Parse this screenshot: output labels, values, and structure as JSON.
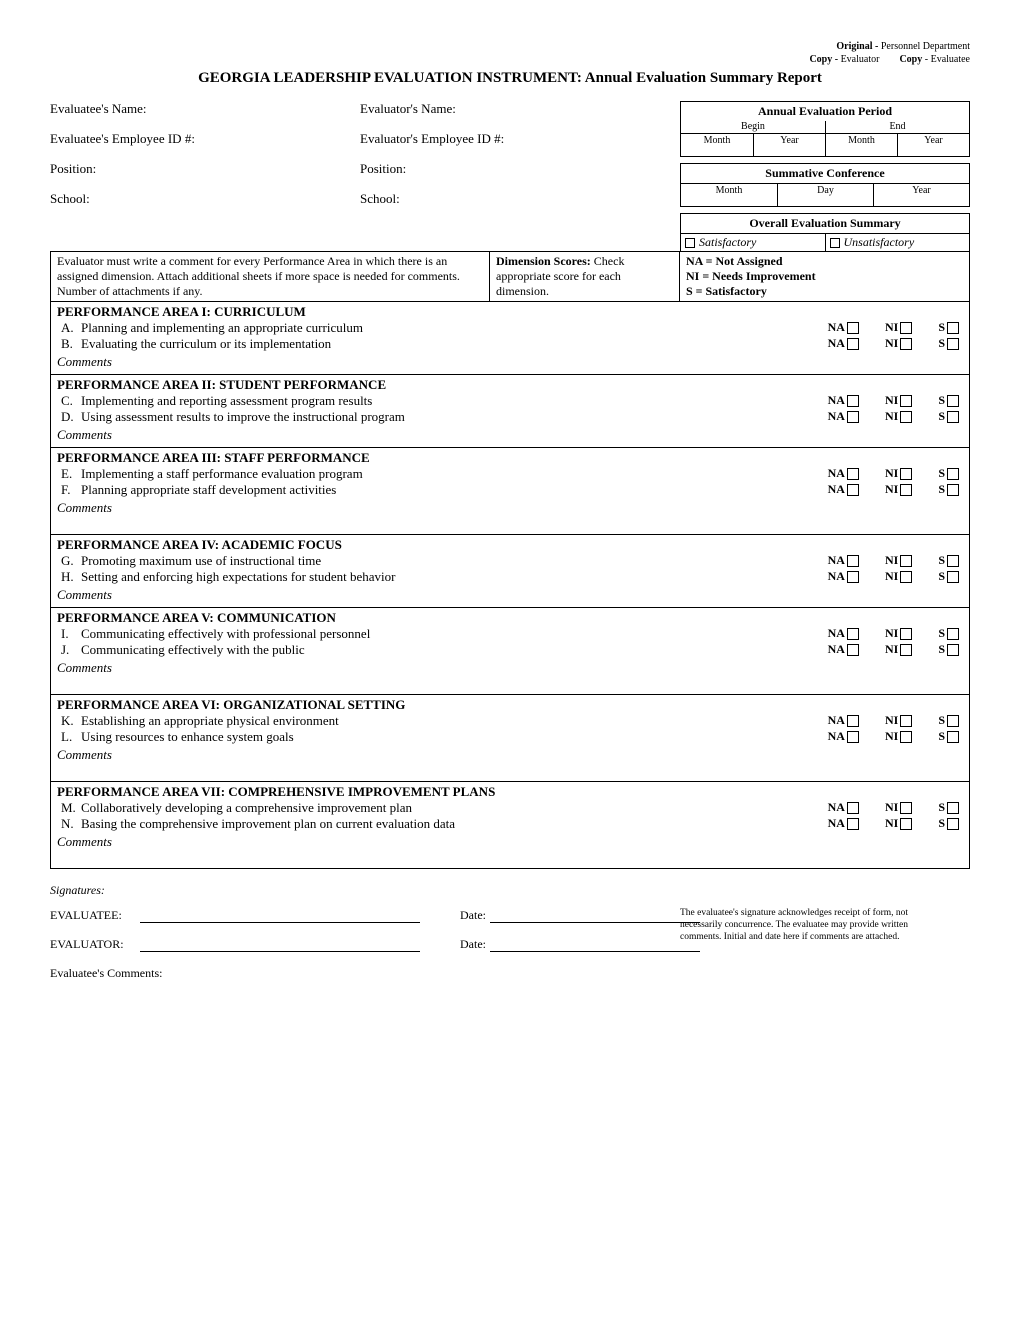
{
  "header": {
    "original": "Original -",
    "original_dest": " Personnel Department",
    "copy1": "Copy -",
    "copy1_dest": " Evaluator",
    "copy2": "Copy ",
    "copy2_dest": " - Evaluatee"
  },
  "title": "GEORGIA LEADERSHIP EVALUATION INSTRUMENT: Annual Evaluation Summary Report",
  "info": {
    "evaluatee_name": "Evaluatee's Name:",
    "evaluator_name": "Evaluator's Name:",
    "evaluatee_id": "Evaluatee's Employee ID #:",
    "evaluator_id": "Evaluator's Employee ID #:",
    "position": "Position:",
    "school": "School:"
  },
  "period": {
    "title": "Annual Evaluation Period",
    "begin": "Begin",
    "end": "End",
    "month": "Month",
    "year": "Year"
  },
  "summative": {
    "title": "Summative Conference",
    "month": "Month",
    "day": "Day",
    "year": "Year"
  },
  "overall": {
    "title": "Overall Evaluation Summary",
    "sat": "Satisfactory",
    "unsat": "Unsatisfactory"
  },
  "instructions": {
    "left": "Evaluator must write a comment for every Performance Area in which there is an assigned dimension. Attach additional sheets if more space is needed for comments. Number of attachments if any.",
    "mid_bold": "Dimension Scores:",
    "mid_rest": "Check appropriate score for each dimension.",
    "r1": "NA = Not Assigned",
    "r2": "NI  = Needs Improvement",
    "r3": "S   = Satisfactory"
  },
  "score_labels": {
    "na": "NA",
    "ni": "NI",
    "s": "S"
  },
  "areas": [
    {
      "title": "PERFORMANCE AREA I: CURRICULUM",
      "items": [
        {
          "letter": "A.",
          "text": "Planning and implementing an appropriate curriculum"
        },
        {
          "letter": "B.",
          "text": "Evaluating the curriculum or its implementation"
        }
      ],
      "comments": "Comments"
    },
    {
      "title": "PERFORMANCE AREA II: STUDENT PERFORMANCE",
      "items": [
        {
          "letter": "C.",
          "text": "Implementing and reporting assessment program results"
        },
        {
          "letter": "D.",
          "text": "Using assessment results to improve the instructional program"
        }
      ],
      "comments": "Comments"
    },
    {
      "title": "PERFORMANCE AREA III: STAFF PERFORMANCE",
      "items": [
        {
          "letter": "E.",
          "text": "Implementing a staff performance evaluation program"
        },
        {
          "letter": "F.",
          "text": "Planning appropriate staff development activities"
        }
      ],
      "comments": "Comments",
      "extra_space": true
    },
    {
      "title": "PERFORMANCE AREA IV: ACADEMIC FOCUS",
      "items": [
        {
          "letter": "G.",
          "text": "Promoting maximum use of instructional time"
        },
        {
          "letter": "H.",
          "text": "Setting and enforcing high expectations for student behavior"
        }
      ],
      "comments": "Comments"
    },
    {
      "title": "PERFORMANCE AREA V: COMMUNICATION",
      "items": [
        {
          "letter": "I.",
          "text": "Communicating effectively with professional personnel"
        },
        {
          "letter": "J.",
          "text": "Communicating effectively with the public"
        }
      ],
      "comments": "Comments",
      "extra_space": true
    },
    {
      "title": "PERFORMANCE AREA VI: ORGANIZATIONAL SETTING",
      "items": [
        {
          "letter": "K.",
          "text": "Establishing an appropriate physical environment"
        },
        {
          "letter": "L.",
          "text": "Using resources to enhance system goals"
        }
      ],
      "comments": "Comments",
      "extra_space": true
    },
    {
      "title": "PERFORMANCE AREA VII: COMPREHENSIVE IMPROVEMENT PLANS",
      "items": [
        {
          "letter": "M.",
          "text": "Collaboratively developing a comprehensive improvement plan"
        },
        {
          "letter": "N.",
          "text": "Basing the comprehensive improvement plan on current evaluation data"
        }
      ],
      "comments": "Comments",
      "extra_space": true
    }
  ],
  "signatures": {
    "label": "Signatures:",
    "evaluatee": "EVALUATEE:",
    "evaluator": "EVALUATOR:",
    "date": "Date:",
    "comments": "Evaluatee's Comments:",
    "note": "The evaluatee's signature acknowledges receipt of form, not necessarily concurrence.  The evaluatee may provide written comments. Initial and date here if comments are attached."
  }
}
